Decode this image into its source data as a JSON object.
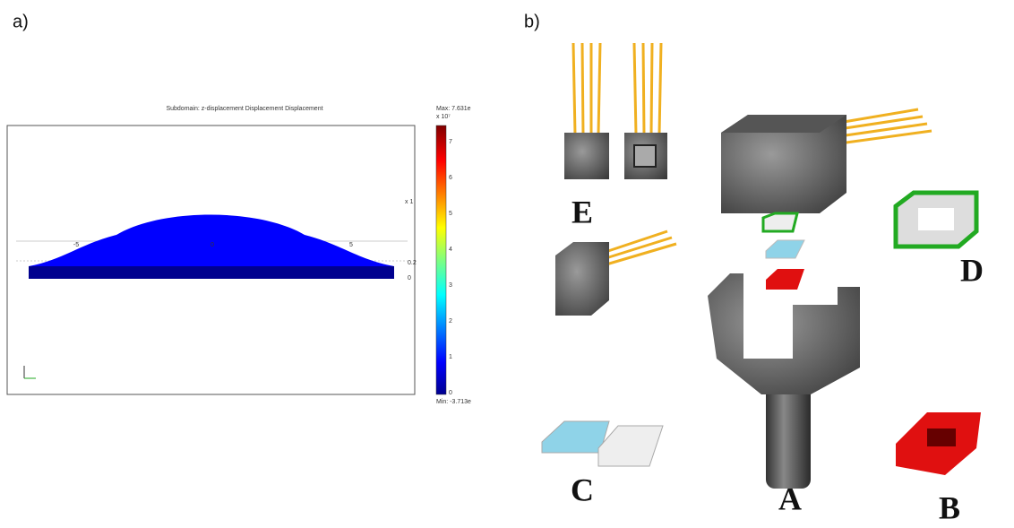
{
  "panel_a": {
    "label": "a)",
    "plot_title": "Subdomain: z-displacement  Displacement Displacement",
    "colorbar": {
      "max_label": "Max: 7.631e",
      "min_label": "Min: -3.713e",
      "exponent": "x 10⁷",
      "ticks": [
        "0",
        "1",
        "2",
        "3",
        "4",
        "5",
        "6",
        "7"
      ]
    },
    "x_ticks": [
      "-5",
      "0",
      "5"
    ],
    "y_scale": "x 1",
    "y_ticks": [
      "0",
      "0.2"
    ]
  },
  "panel_b": {
    "label": "b)",
    "parts": [
      "E",
      "D",
      "C",
      "A",
      "B"
    ]
  }
}
